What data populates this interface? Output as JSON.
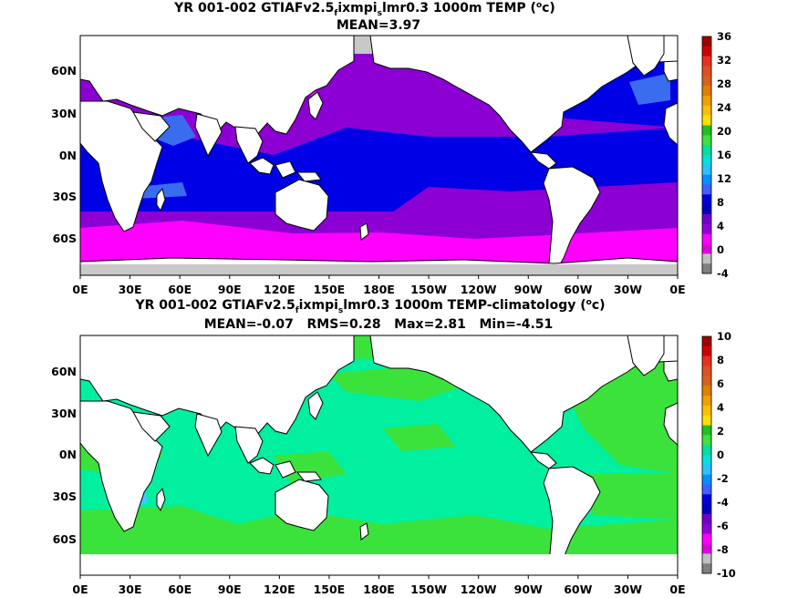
{
  "panels": [
    {
      "id": "temp",
      "title_prefix": "YR 001-002 GTIAFv2.5",
      "title_sub1": "f",
      "title_mid": "ixmpi",
      "title_sub2": "s",
      "title_suffix": "lmr0.3 1000m TEMP (",
      "unit_sup": "o",
      "unit_end": "c)",
      "stats": "MEAN=3.97",
      "lat_labels": [
        "60N",
        "30N",
        "0N",
        "30S",
        "60S"
      ],
      "lon_labels": [
        "0E",
        "30E",
        "60E",
        "90E",
        "120E",
        "150E",
        "180E",
        "150W",
        "120W",
        "90W",
        "60W",
        "30W",
        "0E"
      ],
      "colorbar_labels": [
        "36",
        "32",
        "28",
        "24",
        "20",
        "16",
        "12",
        "8",
        "4",
        "0",
        "-4"
      ],
      "colorbar_colors": [
        "#a00000",
        "#d00000",
        "#e83020",
        "#e05020",
        "#d86020",
        "#e08000",
        "#f0a000",
        "#f8c000",
        "#ffe000",
        "#20c020",
        "#40e040",
        "#00e0a0",
        "#00e0e0",
        "#30c0ff",
        "#0090ff",
        "#4060ff",
        "#0000e0",
        "#0000c0",
        "#7000c8",
        "#9000d8",
        "#ff00ff",
        "#e000e0",
        "#c0c0c0",
        "#808080"
      ]
    },
    {
      "id": "anom",
      "title_prefix": "YR 001-002 GTIAFv2.5",
      "title_sub1": "f",
      "title_mid": "ixmpi",
      "title_sub2": "s",
      "title_suffix": "lmr0.3 1000m TEMP-climatology (",
      "unit_sup": "o",
      "unit_end": "c)",
      "stats": "MEAN=-0.07   RMS=0.28   Max=2.81   Min=-4.51",
      "lat_labels": [
        "60N",
        "30N",
        "0N",
        "30S",
        "60S"
      ],
      "lon_labels": [
        "0E",
        "30E",
        "60E",
        "90E",
        "120E",
        "150E",
        "180E",
        "150W",
        "120W",
        "90W",
        "60W",
        "30W",
        "0E"
      ],
      "colorbar_labels": [
        "10",
        "8",
        "6",
        "4",
        "2",
        "0",
        "-2",
        "-4",
        "-6",
        "-8",
        "-10"
      ],
      "colorbar_colors": [
        "#a00000",
        "#d00000",
        "#e83020",
        "#e05020",
        "#d86020",
        "#e08000",
        "#f0a000",
        "#f8c000",
        "#ffe000",
        "#20c020",
        "#40e040",
        "#00e0a0",
        "#00e0e0",
        "#30c0ff",
        "#0090ff",
        "#4060ff",
        "#0000e0",
        "#0000c0",
        "#7000c8",
        "#9000d8",
        "#ff00ff",
        "#e000e0",
        "#c0c0c0",
        "#808080"
      ]
    }
  ],
  "colors": {
    "land": "#ffffff",
    "coastline": "#000000",
    "ice_gray": "#c8c8c8",
    "temp_violet": "#8c00d4",
    "temp_blue": "#0000e6",
    "temp_medblue": "#3a6cf0",
    "temp_magenta": "#ff00ff",
    "anom_green": "#3ce23c",
    "anom_mint": "#00f0a0",
    "anom_lightblue": "#40c8ff"
  }
}
